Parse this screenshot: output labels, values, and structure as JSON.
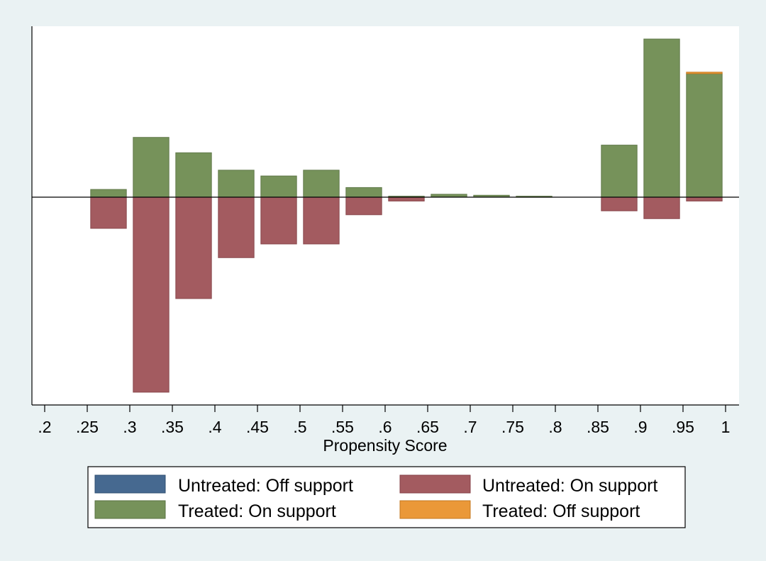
{
  "chart_data": {
    "type": "bar",
    "subtype": "mirrored-histogram",
    "title": "",
    "xlabel": "Propensity Score",
    "ylabel": "",
    "xlim": [
      0.2,
      1.0
    ],
    "ylim": [
      -1.0,
      1.0
    ],
    "bin_width": 0.05,
    "x_ticks": [
      0.2,
      0.25,
      0.3,
      0.35,
      0.4,
      0.45,
      0.5,
      0.55,
      0.6,
      0.65,
      0.7,
      0.75,
      0.8,
      0.85,
      0.9,
      0.95,
      1.0
    ],
    "x_tick_labels": [
      ".2",
      ".25",
      ".3",
      ".35",
      ".4",
      ".45",
      ".5",
      ".55",
      ".6",
      ".65",
      ".7",
      ".75",
      ".8",
      ".85",
      ".9",
      ".95",
      "1"
    ],
    "bin_starts": [
      0.2,
      0.25,
      0.3,
      0.35,
      0.4,
      0.45,
      0.5,
      0.55,
      0.6,
      0.65,
      0.7,
      0.75,
      0.8,
      0.85,
      0.9,
      0.95
    ],
    "series": [
      {
        "name": "Treated: On support",
        "color": "#76925a",
        "direction": "up",
        "values": [
          0.0,
          0.04,
          0.31,
          0.23,
          0.14,
          0.11,
          0.14,
          0.05,
          0.005,
          0.015,
          0.01,
          0.005,
          0.0,
          0.27,
          0.82,
          0.64
        ]
      },
      {
        "name": "Treated: Off support",
        "color": "#ea9838",
        "direction": "up",
        "values": [
          0,
          0,
          0,
          0,
          0,
          0,
          0,
          0,
          0,
          0,
          0,
          0,
          0,
          0,
          0,
          0.008
        ]
      },
      {
        "name": "Untreated: On support",
        "color": "#a35b60",
        "direction": "down",
        "values": [
          0.0,
          0.16,
          1.0,
          0.52,
          0.31,
          0.24,
          0.24,
          0.09,
          0.02,
          0.0,
          0.0,
          0.0,
          0.0,
          0.07,
          0.11,
          0.02
        ]
      },
      {
        "name": "Untreated: Off support",
        "color": "#466990",
        "direction": "down",
        "values": [
          0,
          0,
          0,
          0,
          0,
          0,
          0,
          0,
          0,
          0,
          0,
          0,
          0,
          0,
          0,
          0
        ]
      }
    ],
    "legend": {
      "placement": "bottom-center",
      "items": [
        {
          "label": "Untreated: Off support",
          "color": "#466990"
        },
        {
          "label": "Untreated: On support",
          "color": "#a35b60"
        },
        {
          "label": "Treated: On support",
          "color": "#76925a"
        },
        {
          "label": "Treated: Off support",
          "color": "#ea9838"
        }
      ]
    }
  },
  "colors": {
    "background": "#eaf2f3",
    "plot_area": "#ffffff"
  }
}
